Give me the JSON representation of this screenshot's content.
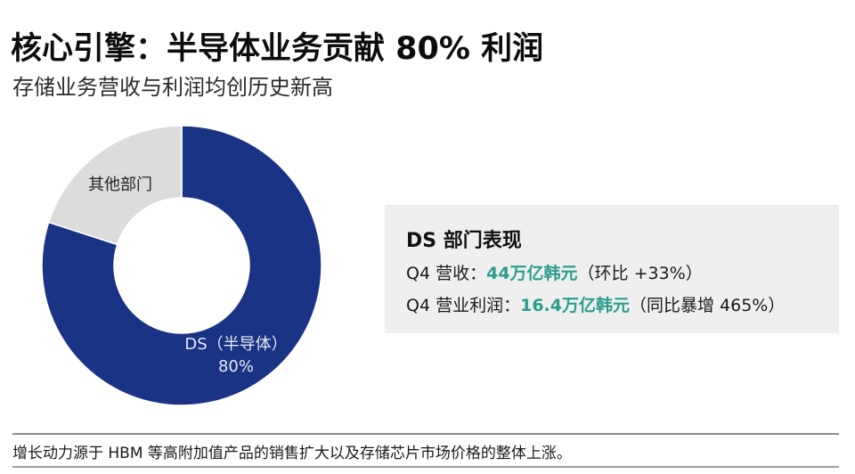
{
  "header": {
    "title": "核心引擎：半导体业务贡献 80% 利润",
    "subtitle": "存储业务营收与利润均创历史新高"
  },
  "donut": {
    "segments": [
      {
        "name": "DS（半导体）",
        "percent_label": "80%",
        "value": 80,
        "color": "#1a3384"
      },
      {
        "name": "其他部门",
        "value": 20,
        "color": "#dcdcdc"
      }
    ]
  },
  "info_box": {
    "title": "DS 部门表现",
    "lines": [
      {
        "prefix": "Q4 营收：",
        "highlight": "44万亿韩元",
        "suffix": "（环比 +33%）"
      },
      {
        "prefix": "Q4 营业利润：",
        "highlight": "16.4万亿韩元",
        "suffix": "（同比暴增 465%）"
      }
    ],
    "highlight_color": "#2a9d8f"
  },
  "footer": {
    "text": "增长动力源于 HBM 等高附加值产品的销售扩大以及存储芯片市场价格的整体上涨。"
  },
  "chart_data": {
    "type": "pie",
    "title": "核心引擎：半导体业务贡献 80% 利润",
    "subtitle": "存储业务营收与利润均创历史新高",
    "categories": [
      "DS（半导体）",
      "其他部门"
    ],
    "values": [
      80,
      20
    ],
    "colors": [
      "#1a3384",
      "#dcdcdc"
    ],
    "donut": true,
    "annotations": [
      "DS 部门表现",
      "Q4 营收：44万亿韩元（环比 +33%）",
      "Q4 营业利润：16.4万亿韩元（同比暴增 465%）"
    ]
  }
}
